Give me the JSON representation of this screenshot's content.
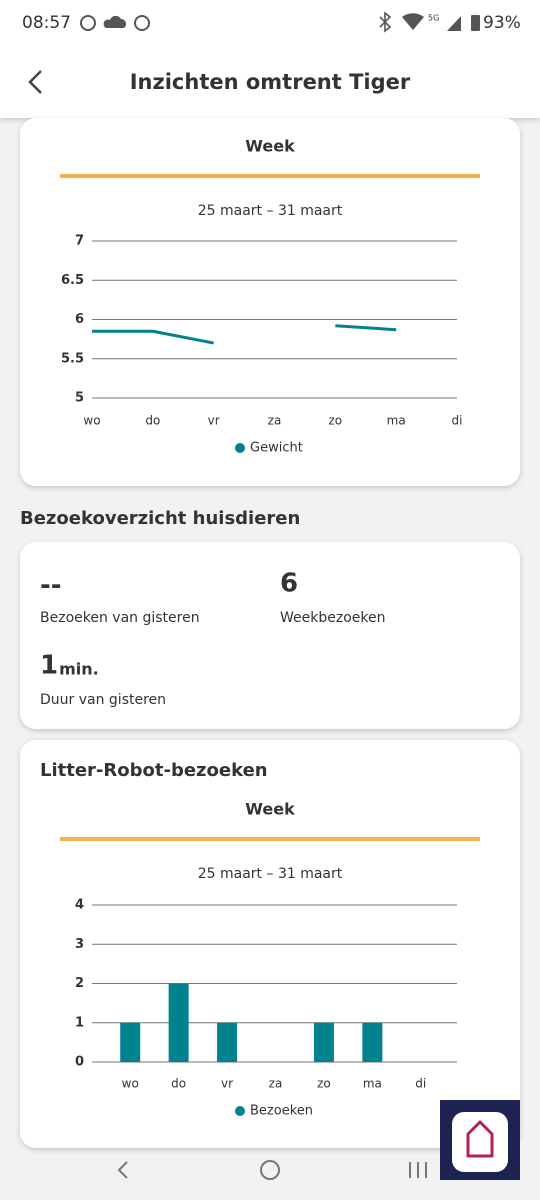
{
  "status_bar": {
    "time": "08:57",
    "network": "5G",
    "battery": "93%"
  },
  "header": {
    "title": "Inzichten omtrent Tiger"
  },
  "visits_section": {
    "title": "Bezoekoverzicht huisdieren",
    "stats": [
      {
        "value": "--",
        "label": "Bezoeken van gisteren"
      },
      {
        "value": "6",
        "label": "Weekbezoeken"
      },
      {
        "value": "1",
        "unit": "min.",
        "label": "Duur van gisteren"
      }
    ]
  },
  "chart_data": [
    {
      "type": "line",
      "tab": "Week",
      "subtitle": "25 maart – 31 maart",
      "categories": [
        "wo",
        "do",
        "vr",
        "za",
        "zo",
        "ma",
        "di"
      ],
      "series": [
        {
          "name": "Gewicht",
          "color": "#00838f",
          "values": [
            5.85,
            5.85,
            5.7,
            null,
            5.92,
            5.87,
            null
          ]
        }
      ],
      "ylim": [
        5,
        7
      ],
      "yticks": [
        5,
        5.5,
        6,
        6.5,
        7
      ],
      "grid": true
    },
    {
      "type": "bar",
      "title": "Litter-Robot-bezoeken",
      "tab": "Week",
      "subtitle": "25 maart – 31 maart",
      "categories": [
        "wo",
        "do",
        "vr",
        "za",
        "zo",
        "ma",
        "di"
      ],
      "series": [
        {
          "name": "Bezoeken",
          "color": "#00838f",
          "values": [
            1,
            2,
            1,
            0,
            1,
            1,
            0
          ]
        }
      ],
      "ylim": [
        0,
        4
      ],
      "yticks": [
        0,
        1,
        2,
        3,
        4
      ],
      "grid": true
    }
  ]
}
